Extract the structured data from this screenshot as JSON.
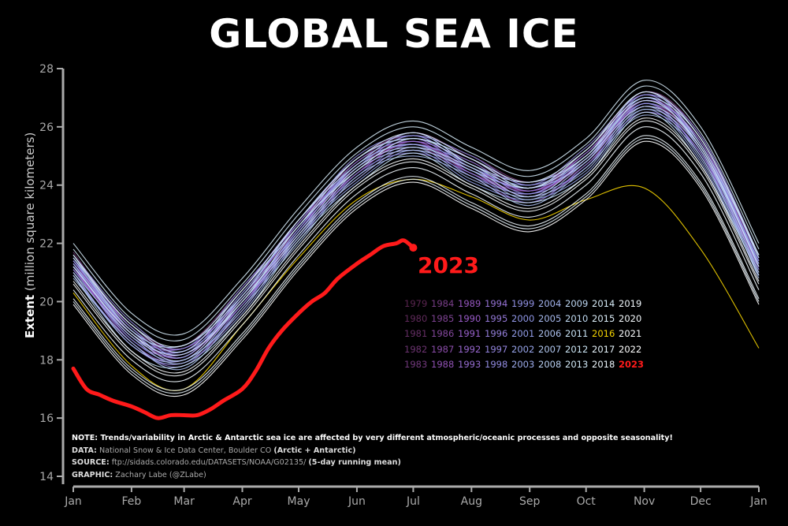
{
  "title": "GLOBAL SEA ICE",
  "notes": {
    "note": "NOTE: Trends/variability in Arctic & Antarctic sea ice are affected by very different atmospheric/oceanic processes and opposite seasonality!",
    "data_label": "DATA:",
    "data_text": "National Snow & Ice Data Center, Boulder CO",
    "data_bold": "(Arctic + Antarctic)",
    "source_label": "SOURCE:",
    "source_text": "ftp://sidads.colorado.edu/DATASETS/NOAA/G02135/",
    "source_bold": "(5-day running mean)",
    "graphic_label": "GRAPHIC:",
    "graphic_text": "Zachary Labe (@ZLabe)"
  },
  "chart_data": {
    "type": "line",
    "title": "GLOBAL SEA ICE",
    "ylabel_bold": "Extent",
    "ylabel_unit": "(million square kilometers)",
    "xlabel": "",
    "ylim": [
      14,
      28
    ],
    "yticks": [
      14,
      16,
      18,
      20,
      22,
      24,
      26,
      28
    ],
    "xticks": [
      "Jan",
      "Feb",
      "Mar",
      "Apr",
      "May",
      "Jun",
      "Jul",
      "Aug",
      "Sep",
      "Oct",
      "Nov",
      "Dec",
      "Jan"
    ],
    "grid": false,
    "legend_placement": "center-right",
    "colors": {
      "early": "#5a2550",
      "mid1": "#9a5ac8",
      "mid2": "#8f9ae8",
      "late": "#c8e4f4",
      "recent": "#ffffff",
      "highlight_2016": "#f5d400",
      "current": "#ff1a1a"
    },
    "annotation": "2023",
    "month_x": [
      "Jan 1",
      "Feb 1",
      "Mar 1",
      "Apr 1",
      "May 1",
      "Jun 1",
      "Jul 1",
      "Aug 1",
      "Sep 1",
      "Oct 1",
      "Nov 1",
      "Dec 1",
      "Dec 31"
    ],
    "series": [
      {
        "name": "1979",
        "values": [
          21.4,
          19.0,
          18.1,
          20.1,
          22.4,
          24.7,
          25.5,
          24.5,
          23.9,
          24.9,
          26.8,
          25.3,
          21.3
        ]
      },
      {
        "name": "1980",
        "values": [
          21.5,
          19.2,
          18.4,
          20.2,
          22.8,
          24.8,
          25.8,
          24.9,
          23.9,
          25.2,
          27.1,
          25.4,
          21.5
        ]
      },
      {
        "name": "1981",
        "values": [
          21.1,
          18.8,
          18.2,
          20.0,
          22.3,
          24.6,
          25.4,
          24.4,
          23.8,
          24.7,
          26.9,
          25.2,
          21.2
        ]
      },
      {
        "name": "1982",
        "values": [
          21.7,
          19.1,
          18.5,
          20.5,
          22.7,
          24.9,
          25.7,
          25.0,
          24.1,
          25.1,
          27.2,
          25.7,
          21.6
        ]
      },
      {
        "name": "1983",
        "values": [
          21.3,
          19.1,
          18.2,
          20.3,
          22.5,
          24.8,
          25.5,
          24.8,
          23.8,
          25.0,
          27.0,
          25.4,
          21.5
        ]
      },
      {
        "name": "1984",
        "values": [
          21.0,
          18.5,
          17.9,
          19.7,
          22.3,
          24.2,
          25.3,
          24.3,
          23.4,
          24.7,
          26.5,
          25.1,
          20.9
        ]
      },
      {
        "name": "1985",
        "values": [
          21.2,
          18.9,
          18.0,
          20.1,
          22.3,
          24.4,
          25.5,
          24.4,
          23.8,
          24.8,
          26.8,
          25.2,
          21.3
        ]
      },
      {
        "name": "1986",
        "values": [
          21.2,
          18.8,
          18.3,
          20.0,
          22.6,
          24.6,
          25.4,
          24.7,
          23.7,
          24.9,
          26.9,
          25.3,
          21.2
        ]
      },
      {
        "name": "1987",
        "values": [
          21.6,
          19.1,
          18.3,
          20.4,
          22.6,
          24.9,
          25.6,
          24.9,
          24.0,
          25.0,
          27.1,
          25.6,
          21.5
        ]
      },
      {
        "name": "1988",
        "values": [
          21.3,
          19.0,
          18.4,
          20.1,
          22.7,
          24.6,
          25.7,
          24.6,
          23.9,
          25.1,
          26.9,
          25.5,
          21.3
        ]
      },
      {
        "name": "1989",
        "values": [
          21.4,
          18.9,
          18.1,
          20.2,
          22.4,
          24.7,
          25.4,
          24.6,
          23.8,
          24.8,
          27.0,
          25.2,
          21.4
        ]
      },
      {
        "name": "1990",
        "values": [
          21.1,
          18.9,
          18.2,
          19.9,
          22.5,
          24.4,
          25.5,
          24.4,
          23.7,
          24.9,
          26.7,
          25.3,
          21.1
        ]
      },
      {
        "name": "1991",
        "values": [
          21.2,
          18.6,
          18.0,
          20.0,
          22.2,
          24.5,
          25.2,
          24.5,
          23.6,
          24.6,
          26.8,
          25.0,
          21.2
        ]
      },
      {
        "name": "1992",
        "values": [
          21.2,
          19.0,
          18.1,
          20.2,
          22.6,
          24.5,
          25.6,
          24.5,
          23.9,
          24.8,
          26.9,
          25.4,
          21.2
        ]
      },
      {
        "name": "1993",
        "values": [
          21.3,
          18.7,
          18.2,
          19.9,
          22.4,
          24.6,
          25.3,
          24.6,
          23.6,
          24.9,
          26.7,
          25.1,
          21.3
        ]
      },
      {
        "name": "1994",
        "values": [
          21.4,
          19.2,
          18.3,
          20.4,
          22.8,
          24.7,
          25.8,
          24.7,
          24.1,
          25.0,
          27.2,
          25.4,
          21.4
        ]
      },
      {
        "name": "1995",
        "values": [
          21.5,
          18.9,
          18.4,
          20.1,
          22.5,
          24.8,
          25.5,
          24.8,
          23.8,
          25.1,
          26.9,
          25.5,
          21.5
        ]
      },
      {
        "name": "1996",
        "values": [
          21.2,
          19.0,
          18.1,
          20.2,
          22.6,
          24.5,
          25.6,
          24.5,
          23.9,
          24.8,
          27.0,
          25.2,
          21.2
        ]
      },
      {
        "name": "1997",
        "values": [
          20.9,
          18.6,
          17.8,
          19.9,
          22.1,
          24.4,
          25.1,
          24.4,
          23.4,
          24.7,
          26.5,
          25.1,
          20.9
        ]
      },
      {
        "name": "1998",
        "values": [
          21.6,
          19.3,
          18.4,
          20.5,
          22.7,
          25.0,
          25.7,
          25.0,
          24.0,
          25.3,
          27.1,
          25.7,
          21.6
        ]
      },
      {
        "name": "1999",
        "values": [
          21.1,
          18.7,
          18.0,
          19.8,
          22.4,
          24.3,
          25.4,
          24.3,
          23.7,
          24.6,
          26.8,
          25.0,
          21.1
        ]
      },
      {
        "name": "2000",
        "values": [
          21.3,
          18.8,
          18.3,
          20.0,
          22.5,
          24.7,
          25.4,
          24.7,
          23.7,
          25.0,
          26.8,
          25.4,
          21.3
        ]
      },
      {
        "name": "2001",
        "values": [
          21.4,
          19.1,
          18.2,
          20.3,
          22.6,
          24.6,
          25.7,
          24.6,
          24.0,
          24.9,
          27.1,
          25.3,
          21.4
        ]
      },
      {
        "name": "2002",
        "values": [
          20.9,
          18.5,
          17.9,
          19.6,
          22.2,
          24.1,
          25.2,
          24.1,
          23.5,
          24.4,
          26.6,
          24.8,
          20.9
        ]
      },
      {
        "name": "2003",
        "values": [
          21.5,
          19.0,
          18.5,
          20.2,
          22.8,
          24.9,
          25.6,
          24.9,
          23.9,
          25.2,
          27.0,
          25.6,
          21.5
        ]
      },
      {
        "name": "2004",
        "values": [
          21.3,
          19.0,
          18.1,
          20.2,
          22.4,
          24.7,
          25.4,
          24.5,
          23.9,
          24.8,
          27.0,
          25.2,
          21.3
        ]
      },
      {
        "name": "2005",
        "values": [
          21.0,
          18.5,
          18.0,
          19.7,
          22.3,
          24.2,
          25.3,
          24.2,
          23.6,
          24.5,
          26.7,
          24.9,
          21.0
        ]
      },
      {
        "name": "2006",
        "values": [
          20.8,
          18.6,
          17.7,
          19.8,
          22.0,
          24.3,
          25.0,
          24.3,
          23.3,
          24.6,
          26.4,
          25.0,
          20.8
        ]
      },
      {
        "name": "2007",
        "values": [
          21.0,
          18.8,
          17.9,
          20.0,
          22.2,
          24.5,
          25.2,
          24.5,
          23.5,
          24.8,
          26.6,
          25.2,
          21.0
        ]
      },
      {
        "name": "2008",
        "values": [
          21.6,
          19.0,
          18.5,
          20.2,
          22.8,
          24.7,
          25.8,
          24.7,
          24.1,
          25.0,
          27.2,
          25.4,
          21.6
        ]
      },
      {
        "name": "2009",
        "values": [
          21.2,
          18.9,
          18.0,
          20.1,
          22.3,
          24.6,
          25.3,
          24.6,
          23.6,
          24.9,
          26.7,
          25.3,
          21.2
        ]
      },
      {
        "name": "2010",
        "values": [
          21.5,
          19.2,
          18.3,
          20.4,
          22.6,
          24.9,
          25.6,
          24.9,
          23.9,
          25.2,
          27.0,
          25.6,
          21.5
        ]
      },
      {
        "name": "2011",
        "values": [
          20.9,
          18.3,
          17.8,
          19.5,
          22.1,
          24.0,
          25.1,
          24.0,
          23.4,
          24.3,
          26.5,
          24.7,
          20.9
        ]
      },
      {
        "name": "2012",
        "values": [
          21.2,
          18.9,
          18.2,
          20.0,
          22.6,
          24.5,
          25.6,
          24.7,
          23.9,
          25.0,
          26.9,
          25.3,
          21.2
        ]
      },
      {
        "name": "2013",
        "values": [
          21.8,
          19.4,
          18.7,
          20.6,
          23.0,
          25.1,
          26.0,
          25.1,
          24.3,
          25.4,
          27.4,
          25.8,
          21.8
        ]
      },
      {
        "name": "2014",
        "values": [
          22.0,
          19.6,
          18.9,
          20.8,
          23.2,
          25.3,
          26.2,
          25.3,
          24.5,
          25.6,
          27.6,
          26.0,
          22.0
        ]
      },
      {
        "name": "2015",
        "values": [
          21.6,
          19.2,
          18.5,
          20.4,
          22.8,
          24.9,
          25.8,
          24.9,
          24.1,
          25.2,
          27.2,
          25.6,
          21.6
        ]
      },
      {
        "name": "2016",
        "values": [
          20.3,
          17.8,
          17.0,
          19.2,
          21.5,
          23.5,
          24.2,
          23.6,
          22.8,
          23.5,
          23.9,
          21.8,
          18.4
        ]
      },
      {
        "name": "2017",
        "values": [
          20.0,
          17.6,
          16.9,
          18.8,
          21.2,
          23.3,
          24.2,
          23.3,
          22.5,
          23.6,
          25.6,
          24.0,
          20.0
        ]
      },
      {
        "name": "2018",
        "values": [
          20.1,
          17.7,
          17.0,
          18.9,
          21.3,
          23.4,
          24.3,
          23.4,
          22.6,
          23.7,
          25.7,
          24.1,
          20.1
        ]
      },
      {
        "name": "2019",
        "values": [
          20.4,
          18.0,
          17.3,
          19.2,
          21.6,
          23.7,
          24.6,
          23.7,
          22.9,
          24.0,
          26.0,
          24.4,
          20.4
        ]
      },
      {
        "name": "2020",
        "values": [
          20.6,
          18.2,
          17.5,
          19.4,
          21.8,
          23.9,
          24.8,
          23.9,
          23.1,
          24.2,
          26.2,
          24.6,
          20.6
        ]
      },
      {
        "name": "2021",
        "values": [
          20.7,
          18.3,
          17.6,
          19.5,
          21.9,
          24.0,
          24.9,
          24.0,
          23.2,
          24.3,
          26.3,
          24.7,
          20.7
        ]
      },
      {
        "name": "2022",
        "values": [
          19.9,
          17.5,
          16.8,
          18.7,
          21.1,
          23.2,
          24.1,
          23.2,
          22.4,
          23.5,
          25.5,
          23.9,
          19.9
        ]
      }
    ],
    "current": {
      "name": "2023",
      "dates": [
        "2023-01-01",
        "2023-01-08",
        "2023-01-15",
        "2023-01-22",
        "2023-02-01",
        "2023-02-08",
        "2023-02-15",
        "2023-02-22",
        "2023-03-01",
        "2023-03-08",
        "2023-03-15",
        "2023-03-22",
        "2023-04-01",
        "2023-04-08",
        "2023-04-15",
        "2023-04-22",
        "2023-05-01",
        "2023-05-08",
        "2023-05-15",
        "2023-05-22",
        "2023-06-01",
        "2023-06-08",
        "2023-06-15",
        "2023-06-22",
        "2023-06-26",
        "2023-07-01"
      ],
      "values": [
        17.7,
        17.0,
        16.8,
        16.6,
        16.4,
        16.2,
        16.0,
        16.1,
        16.1,
        16.1,
        16.3,
        16.6,
        17.0,
        17.6,
        18.4,
        19.0,
        19.6,
        20.0,
        20.3,
        20.8,
        21.3,
        21.6,
        21.9,
        22.0,
        22.1,
        21.85
      ]
    }
  }
}
